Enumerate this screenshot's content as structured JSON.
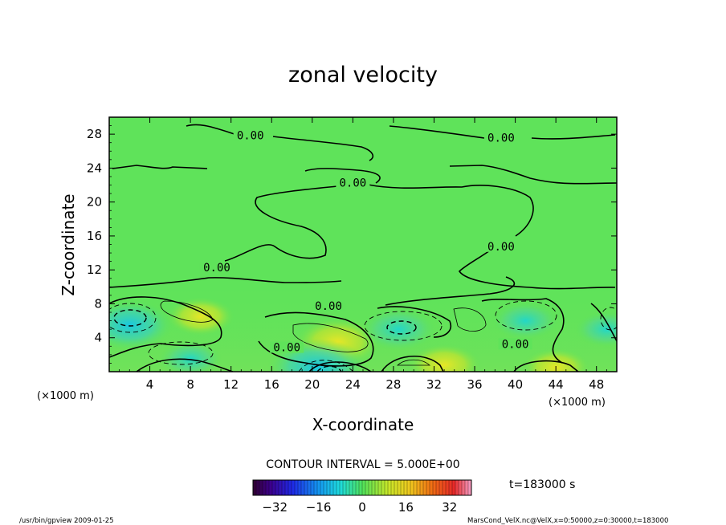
{
  "chart_data": {
    "type": "heatmap",
    "title": "zonal velocity",
    "xlabel": "X-coordinate",
    "ylabel": "Z-coordinate",
    "x_unit_left": "(×1000 m)",
    "x_unit_right": "(×1000 m)",
    "xlim": [
      0,
      50
    ],
    "ylim": [
      0,
      30
    ],
    "xticks": [
      "4",
      "8",
      "12",
      "16",
      "20",
      "24",
      "28",
      "32",
      "36",
      "40",
      "44",
      "48"
    ],
    "yticks": [
      "4",
      "8",
      "12",
      "16",
      "20",
      "24",
      "28"
    ],
    "contour_labels": [
      {
        "text": "0.00",
        "x": 13.9,
        "y": 27.6
      },
      {
        "text": "0.00",
        "x": 38.6,
        "y": 27.3
      },
      {
        "text": "0.00",
        "x": 24.0,
        "y": 22.0
      },
      {
        "text": "0.00",
        "x": 10.6,
        "y": 12.0
      },
      {
        "text": "0.00",
        "x": 38.6,
        "y": 14.5
      },
      {
        "text": "0.00",
        "x": 21.6,
        "y": 7.5
      },
      {
        "text": "0.00",
        "x": 17.5,
        "y": 2.6
      },
      {
        "text": "0.00",
        "x": 40.0,
        "y": 3.0
      }
    ],
    "contour_interval": "CONTOUR INTERVAL = 5.000E+00",
    "colorbar": {
      "min": -40,
      "max": 40,
      "ticks": [
        "−32",
        "−16",
        "0",
        "16",
        "32"
      ]
    },
    "time": "t=183000 s",
    "features": [
      {
        "x": 2.0,
        "y": 5.5,
        "value": -18
      },
      {
        "x": 9.0,
        "y": 6.5,
        "value": 12
      },
      {
        "x": 22.5,
        "y": 3.5,
        "value": 18
      },
      {
        "x": 28.5,
        "y": 5.0,
        "value": -14
      },
      {
        "x": 41.0,
        "y": 6.0,
        "value": -11
      },
      {
        "x": 33.0,
        "y": 0.8,
        "value": 14
      },
      {
        "x": 20.5,
        "y": 0.5,
        "value": -22
      },
      {
        "x": 44.0,
        "y": 0.5,
        "value": 12
      },
      {
        "x": 8.0,
        "y": 1.5,
        "value": -10
      },
      {
        "x": 49.0,
        "y": 5.0,
        "value": -10
      }
    ]
  },
  "footer": {
    "left": "/usr/bin/gpview  2009-01-25",
    "right": "MarsCond_VelX.nc@VelX,x=0:50000,z=0:30000,t=183000"
  }
}
